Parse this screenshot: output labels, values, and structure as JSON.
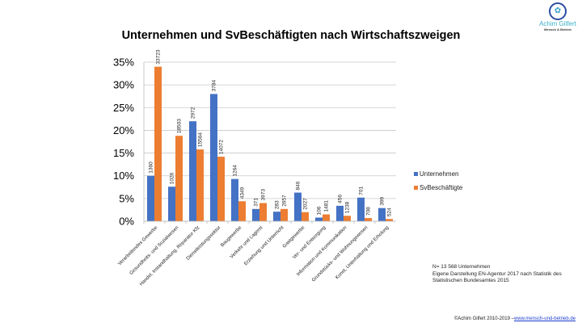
{
  "logo": {
    "name": "Achim Gilfert",
    "tagline": "Mensch & Betrieb"
  },
  "chart_data": {
    "type": "bar",
    "title": "Unternehmen und SvBeschäftigten nach Wirtschaftszweigen",
    "categories": [
      "Verarbeitendes Gewerbe",
      "Gesundheits- und Sozialwesen",
      "Handel, Instandhaltung, Reparatur Kfz",
      "Dienstleistungssektor",
      "Baugewerbe",
      "Verkehr und Lagerei",
      "Erziehung und Unterricht",
      "Gastgewerbe",
      "Ver- und Entsorgung",
      "Information und Kommunikation",
      "Grundstücks- und Wohnungswesen",
      "Kunst, Unterhaltung und Erholung"
    ],
    "series": [
      {
        "name": "Unternehmen",
        "color": "#4472c4",
        "values": [
          10.0,
          7.6,
          22.0,
          28.0,
          9.3,
          2.7,
          2.1,
          6.3,
          0.8,
          3.4,
          5.2,
          2.9
        ],
        "labels": [
          "1360",
          "1026",
          "2972",
          "3784",
          "1264",
          "371",
          "283",
          "846",
          "106",
          "456",
          "701",
          "399"
        ]
      },
      {
        "name": "SvBeschäftigte",
        "color": "#ed7d31",
        "values": [
          34.0,
          18.8,
          15.8,
          14.2,
          4.4,
          4.0,
          2.7,
          2.0,
          1.5,
          1.2,
          0.7,
          0.5
        ],
        "labels": [
          "33723",
          "18503",
          "15564",
          "14072",
          "4349",
          "3973",
          "2657",
          "2027",
          "1481",
          "1238",
          "708",
          "524"
        ]
      }
    ],
    "yticks": [
      "0%",
      "5%",
      "10%",
      "15%",
      "20%",
      "25%",
      "30%",
      "35%"
    ],
    "ylim": [
      0,
      35
    ],
    "grid": true,
    "legend": "right"
  },
  "note": [
    "N= 13 568 Unternehmen",
    "Eigene Darstellung EN-Agentur 2017 nach Statistik des",
    "Statistischen Bundesamtes 2015"
  ],
  "footer": {
    "text": "©Achim Gilfert 2010-2019 –",
    "link": "www.mensch-und-betrieb.de"
  }
}
